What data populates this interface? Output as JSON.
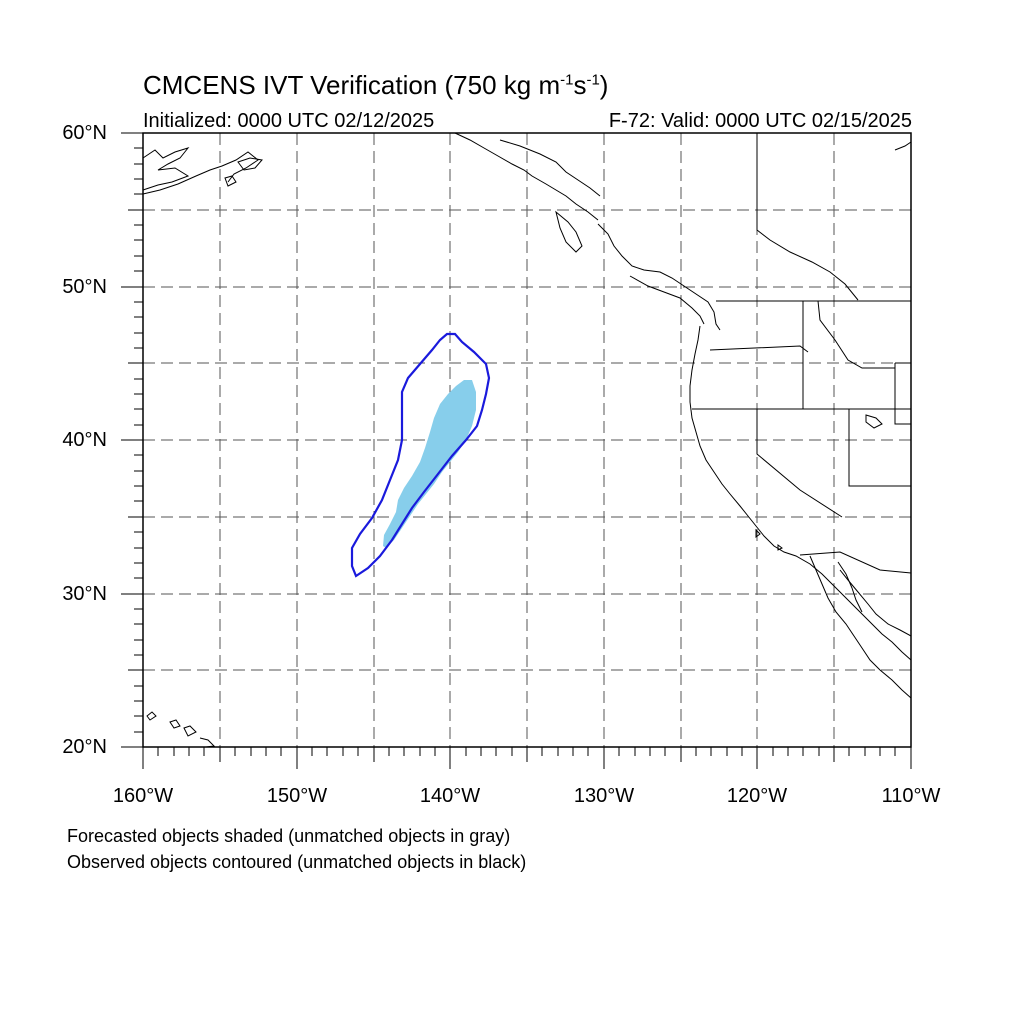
{
  "title": {
    "main": "CMCENS IVT Verification (750 kg m",
    "sup1": "-1",
    "mid": "s",
    "sup2": "-1",
    "end": ")"
  },
  "initialized": "Initialized: 0000 UTC 02/12/2025",
  "valid": "F-72: Valid: 0000 UTC 02/15/2025",
  "lat_labels": [
    "60°N",
    "50°N",
    "40°N",
    "30°N",
    "20°N"
  ],
  "lon_labels": [
    "160°W",
    "150°W",
    "140°W",
    "130°W",
    "120°W",
    "110°W"
  ],
  "legend": {
    "line1": "Forecasted objects shaded (unmatched objects in gray)",
    "line2": "Observed objects contoured (unmatched objects in black)"
  },
  "map_extent": {
    "lon": [
      -160,
      -110
    ],
    "lat": [
      20,
      60
    ]
  },
  "colors": {
    "forecast_fill": "#87ceeb",
    "observed_contour": "#1a1adc",
    "coast": "#000000",
    "grid": "#555555"
  }
}
